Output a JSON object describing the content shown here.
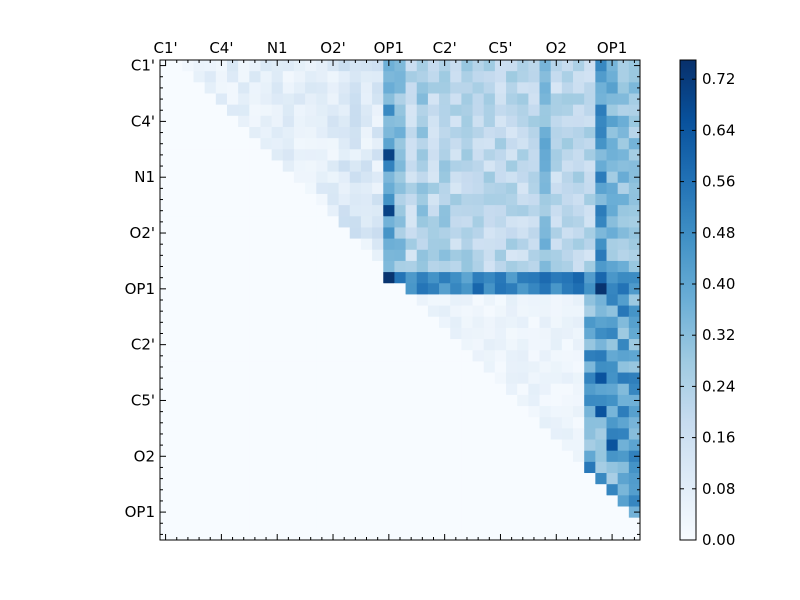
{
  "chart_data": {
    "type": "heatmap",
    "title": "",
    "xlabel": "",
    "ylabel": "",
    "n_cells": 43,
    "colormap": "Blues",
    "x_tick_labels": [
      "C1'",
      "C4'",
      "N1",
      "O2'",
      "OP1",
      "C2'",
      "C5'",
      "O2",
      "OP1"
    ],
    "y_tick_labels": [
      "C1'",
      "C4'",
      "N1",
      "O2'",
      "OP1",
      "C2'",
      "C5'",
      "O2",
      "OP1"
    ],
    "tick_positions": [
      0,
      5,
      10,
      15,
      20,
      25,
      30,
      35,
      40
    ],
    "colorbar": {
      "range": [
        0,
        0.75
      ],
      "ticks": [
        "0.00",
        "0.08",
        "0.16",
        "0.24",
        "0.32",
        "0.40",
        "0.48",
        "0.56",
        "0.64",
        "0.72"
      ],
      "tick_values": [
        0,
        0.08,
        0.16,
        0.24,
        0.32,
        0.4,
        0.48,
        0.56,
        0.64,
        0.72
      ]
    },
    "layout_note": "upper-triangular matrix; lower triangle near zero",
    "notable_values": [
      {
        "row": 19,
        "col": 20,
        "value": 0.74
      },
      {
        "row": 20,
        "col": 39,
        "value": 0.74
      },
      {
        "row": 8,
        "col": 20,
        "value": 0.7
      },
      {
        "row": 13,
        "col": 20,
        "value": 0.7
      },
      {
        "row": 28,
        "col": 39,
        "value": 0.65
      },
      {
        "row": 34,
        "col": 40,
        "value": 0.65
      },
      {
        "row": 31,
        "col": 39,
        "value": 0.65
      },
      {
        "row": 20,
        "col": 23,
        "value": 0.55
      },
      {
        "row": 20,
        "col": 30,
        "value": 0.55
      },
      {
        "row": 20,
        "col": 34,
        "value": 0.55
      }
    ]
  }
}
